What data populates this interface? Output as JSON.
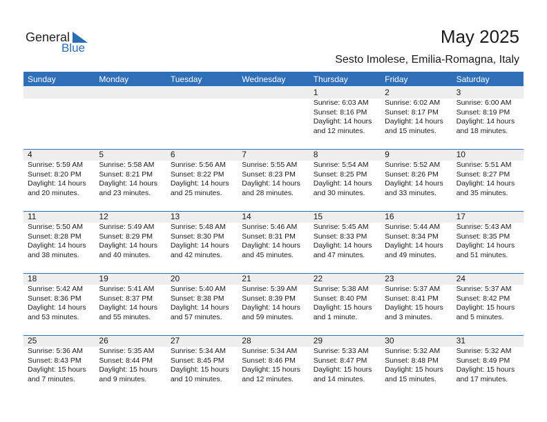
{
  "logo": {
    "line1": "General",
    "line2": "Blue"
  },
  "title": "May 2025",
  "location": "Sesto Imolese, Emilia-Romagna, Italy",
  "weekdays": [
    "Sunday",
    "Monday",
    "Tuesday",
    "Wednesday",
    "Thursday",
    "Friday",
    "Saturday"
  ],
  "weeks": [
    [
      null,
      null,
      null,
      null,
      {
        "day": 1,
        "sunrise": "Sunrise: 6:03 AM",
        "sunset": "Sunset: 8:16 PM",
        "daylight": [
          "Daylight: 14 hours",
          "and 12 minutes."
        ]
      },
      {
        "day": 2,
        "sunrise": "Sunrise: 6:02 AM",
        "sunset": "Sunset: 8:17 PM",
        "daylight": [
          "Daylight: 14 hours",
          "and 15 minutes."
        ]
      },
      {
        "day": 3,
        "sunrise": "Sunrise: 6:00 AM",
        "sunset": "Sunset: 8:19 PM",
        "daylight": [
          "Daylight: 14 hours",
          "and 18 minutes."
        ]
      }
    ],
    [
      {
        "day": 4,
        "sunrise": "Sunrise: 5:59 AM",
        "sunset": "Sunset: 8:20 PM",
        "daylight": [
          "Daylight: 14 hours",
          "and 20 minutes."
        ]
      },
      {
        "day": 5,
        "sunrise": "Sunrise: 5:58 AM",
        "sunset": "Sunset: 8:21 PM",
        "daylight": [
          "Daylight: 14 hours",
          "and 23 minutes."
        ]
      },
      {
        "day": 6,
        "sunrise": "Sunrise: 5:56 AM",
        "sunset": "Sunset: 8:22 PM",
        "daylight": [
          "Daylight: 14 hours",
          "and 25 minutes."
        ]
      },
      {
        "day": 7,
        "sunrise": "Sunrise: 5:55 AM",
        "sunset": "Sunset: 8:23 PM",
        "daylight": [
          "Daylight: 14 hours",
          "and 28 minutes."
        ]
      },
      {
        "day": 8,
        "sunrise": "Sunrise: 5:54 AM",
        "sunset": "Sunset: 8:25 PM",
        "daylight": [
          "Daylight: 14 hours",
          "and 30 minutes."
        ]
      },
      {
        "day": 9,
        "sunrise": "Sunrise: 5:52 AM",
        "sunset": "Sunset: 8:26 PM",
        "daylight": [
          "Daylight: 14 hours",
          "and 33 minutes."
        ]
      },
      {
        "day": 10,
        "sunrise": "Sunrise: 5:51 AM",
        "sunset": "Sunset: 8:27 PM",
        "daylight": [
          "Daylight: 14 hours",
          "and 35 minutes."
        ]
      }
    ],
    [
      {
        "day": 11,
        "sunrise": "Sunrise: 5:50 AM",
        "sunset": "Sunset: 8:28 PM",
        "daylight": [
          "Daylight: 14 hours",
          "and 38 minutes."
        ]
      },
      {
        "day": 12,
        "sunrise": "Sunrise: 5:49 AM",
        "sunset": "Sunset: 8:29 PM",
        "daylight": [
          "Daylight: 14 hours",
          "and 40 minutes."
        ]
      },
      {
        "day": 13,
        "sunrise": "Sunrise: 5:48 AM",
        "sunset": "Sunset: 8:30 PM",
        "daylight": [
          "Daylight: 14 hours",
          "and 42 minutes."
        ]
      },
      {
        "day": 14,
        "sunrise": "Sunrise: 5:46 AM",
        "sunset": "Sunset: 8:31 PM",
        "daylight": [
          "Daylight: 14 hours",
          "and 45 minutes."
        ]
      },
      {
        "day": 15,
        "sunrise": "Sunrise: 5:45 AM",
        "sunset": "Sunset: 8:33 PM",
        "daylight": [
          "Daylight: 14 hours",
          "and 47 minutes."
        ]
      },
      {
        "day": 16,
        "sunrise": "Sunrise: 5:44 AM",
        "sunset": "Sunset: 8:34 PM",
        "daylight": [
          "Daylight: 14 hours",
          "and 49 minutes."
        ]
      },
      {
        "day": 17,
        "sunrise": "Sunrise: 5:43 AM",
        "sunset": "Sunset: 8:35 PM",
        "daylight": [
          "Daylight: 14 hours",
          "and 51 minutes."
        ]
      }
    ],
    [
      {
        "day": 18,
        "sunrise": "Sunrise: 5:42 AM",
        "sunset": "Sunset: 8:36 PM",
        "daylight": [
          "Daylight: 14 hours",
          "and 53 minutes."
        ]
      },
      {
        "day": 19,
        "sunrise": "Sunrise: 5:41 AM",
        "sunset": "Sunset: 8:37 PM",
        "daylight": [
          "Daylight: 14 hours",
          "and 55 minutes."
        ]
      },
      {
        "day": 20,
        "sunrise": "Sunrise: 5:40 AM",
        "sunset": "Sunset: 8:38 PM",
        "daylight": [
          "Daylight: 14 hours",
          "and 57 minutes."
        ]
      },
      {
        "day": 21,
        "sunrise": "Sunrise: 5:39 AM",
        "sunset": "Sunset: 8:39 PM",
        "daylight": [
          "Daylight: 14 hours",
          "and 59 minutes."
        ]
      },
      {
        "day": 22,
        "sunrise": "Sunrise: 5:38 AM",
        "sunset": "Sunset: 8:40 PM",
        "daylight": [
          "Daylight: 15 hours",
          "and 1 minute."
        ]
      },
      {
        "day": 23,
        "sunrise": "Sunrise: 5:37 AM",
        "sunset": "Sunset: 8:41 PM",
        "daylight": [
          "Daylight: 15 hours",
          "and 3 minutes."
        ]
      },
      {
        "day": 24,
        "sunrise": "Sunrise: 5:37 AM",
        "sunset": "Sunset: 8:42 PM",
        "daylight": [
          "Daylight: 15 hours",
          "and 5 minutes."
        ]
      }
    ],
    [
      {
        "day": 25,
        "sunrise": "Sunrise: 5:36 AM",
        "sunset": "Sunset: 8:43 PM",
        "daylight": [
          "Daylight: 15 hours",
          "and 7 minutes."
        ]
      },
      {
        "day": 26,
        "sunrise": "Sunrise: 5:35 AM",
        "sunset": "Sunset: 8:44 PM",
        "daylight": [
          "Daylight: 15 hours",
          "and 9 minutes."
        ]
      },
      {
        "day": 27,
        "sunrise": "Sunrise: 5:34 AM",
        "sunset": "Sunset: 8:45 PM",
        "daylight": [
          "Daylight: 15 hours",
          "and 10 minutes."
        ]
      },
      {
        "day": 28,
        "sunrise": "Sunrise: 5:34 AM",
        "sunset": "Sunset: 8:46 PM",
        "daylight": [
          "Daylight: 15 hours",
          "and 12 minutes."
        ]
      },
      {
        "day": 29,
        "sunrise": "Sunrise: 5:33 AM",
        "sunset": "Sunset: 8:47 PM",
        "daylight": [
          "Daylight: 15 hours",
          "and 14 minutes."
        ]
      },
      {
        "day": 30,
        "sunrise": "Sunrise: 5:32 AM",
        "sunset": "Sunset: 8:48 PM",
        "daylight": [
          "Daylight: 15 hours",
          "and 15 minutes."
        ]
      },
      {
        "day": 31,
        "sunrise": "Sunrise: 5:32 AM",
        "sunset": "Sunset: 8:49 PM",
        "daylight": [
          "Daylight: 15 hours",
          "and 17 minutes."
        ]
      }
    ]
  ]
}
